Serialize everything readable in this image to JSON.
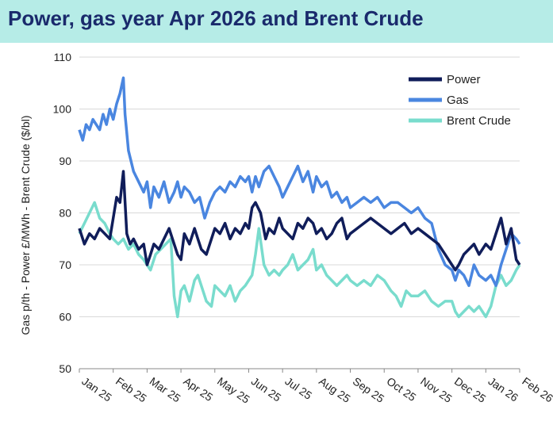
{
  "chart_data": {
    "type": "line",
    "title": "Power, gas year Apr 2026 and Brent Crude",
    "xlabel": "",
    "ylabel": "Gas p/th - Power £/MWh - Brent Crude ($/bl)",
    "ylim": [
      50,
      110
    ],
    "yticks": [
      50,
      60,
      70,
      80,
      90,
      100,
      110
    ],
    "xlim": [
      0,
      13
    ],
    "xtick_labels": [
      "Jan 25",
      "Feb 25",
      "Mar 25",
      "Apr 25",
      "May 25",
      "Jun 25",
      "Jul 25",
      "Aug 25",
      "Sep 25",
      "Oct 25",
      "Nov 25",
      "Dec 25",
      "Jan 26",
      "Feb 26"
    ],
    "grid": true,
    "legend_position": "top-right",
    "series": [
      {
        "name": "Power",
        "color": "#101d5a",
        "x": [
          0,
          0.15,
          0.3,
          0.45,
          0.6,
          0.75,
          0.9,
          1.0,
          1.1,
          1.2,
          1.3,
          1.4,
          1.5,
          1.6,
          1.75,
          1.9,
          2.0,
          2.1,
          2.2,
          2.35,
          2.5,
          2.65,
          2.8,
          2.9,
          3.0,
          3.1,
          3.25,
          3.4,
          3.5,
          3.6,
          3.75,
          3.9,
          4.0,
          4.15,
          4.3,
          4.45,
          4.6,
          4.75,
          4.9,
          5.0,
          5.1,
          5.2,
          5.35,
          5.5,
          5.6,
          5.75,
          5.9,
          6.0,
          6.15,
          6.3,
          6.45,
          6.6,
          6.75,
          6.9,
          7.0,
          7.15,
          7.3,
          7.45,
          7.6,
          7.75,
          7.9,
          8.0,
          8.2,
          8.4,
          8.6,
          8.8,
          9.0,
          9.2,
          9.4,
          9.6,
          9.8,
          10.0,
          10.2,
          10.4,
          10.6,
          10.8,
          11.0,
          11.1,
          11.2,
          11.35,
          11.5,
          11.65,
          11.8,
          12.0,
          12.15,
          12.3,
          12.45,
          12.6,
          12.75,
          12.9,
          13.0
        ],
        "values": [
          77,
          74,
          76,
          75,
          77,
          76,
          75,
          79,
          83,
          82,
          88,
          76,
          74,
          75,
          73,
          74,
          70,
          72,
          74,
          73,
          75,
          77,
          74,
          72,
          71,
          76,
          74,
          77,
          75,
          73,
          72,
          75,
          77,
          76,
          78,
          75,
          77,
          76,
          78,
          77,
          81,
          82,
          80,
          75,
          77,
          76,
          79,
          77,
          76,
          75,
          78,
          77,
          79,
          78,
          76,
          77,
          75,
          76,
          78,
          79,
          75,
          76,
          77,
          78,
          79,
          78,
          77,
          76,
          77,
          78,
          76,
          77,
          76,
          75,
          74,
          72,
          70,
          69,
          70,
          72,
          73,
          74,
          72,
          74,
          73,
          76,
          79,
          74,
          77,
          71,
          70
        ]
      },
      {
        "name": "Gas",
        "color": "#4a86e0",
        "x": [
          0,
          0.1,
          0.2,
          0.3,
          0.4,
          0.5,
          0.6,
          0.7,
          0.8,
          0.9,
          1.0,
          1.1,
          1.2,
          1.3,
          1.35,
          1.45,
          1.6,
          1.75,
          1.9,
          2.0,
          2.1,
          2.2,
          2.35,
          2.5,
          2.65,
          2.8,
          2.9,
          3.0,
          3.1,
          3.25,
          3.4,
          3.55,
          3.7,
          3.85,
          4.0,
          4.15,
          4.3,
          4.45,
          4.6,
          4.75,
          4.9,
          5.0,
          5.1,
          5.2,
          5.3,
          5.45,
          5.6,
          5.75,
          5.9,
          6.0,
          6.15,
          6.3,
          6.45,
          6.6,
          6.75,
          6.9,
          7.0,
          7.15,
          7.3,
          7.45,
          7.6,
          7.75,
          7.9,
          8.0,
          8.2,
          8.4,
          8.6,
          8.8,
          9.0,
          9.2,
          9.4,
          9.6,
          9.8,
          10.0,
          10.2,
          10.4,
          10.6,
          10.8,
          11.0,
          11.1,
          11.2,
          11.35,
          11.5,
          11.65,
          11.8,
          12.0,
          12.15,
          12.3,
          12.45,
          12.6,
          12.75,
          12.9,
          13.0
        ],
        "values": [
          96,
          94,
          97,
          96,
          98,
          97,
          96,
          99,
          97,
          100,
          98,
          101,
          103,
          106,
          99,
          92,
          88,
          86,
          84,
          86,
          81,
          85,
          83,
          86,
          82,
          84,
          86,
          83,
          85,
          84,
          82,
          83,
          79,
          82,
          84,
          85,
          84,
          86,
          85,
          87,
          86,
          87,
          84,
          87,
          85,
          88,
          89,
          87,
          85,
          83,
          85,
          87,
          89,
          86,
          88,
          84,
          87,
          85,
          86,
          83,
          84,
          82,
          83,
          81,
          82,
          83,
          82,
          83,
          81,
          82,
          82,
          81,
          80,
          81,
          79,
          78,
          73,
          70,
          69,
          67,
          69,
          68,
          66,
          70,
          68,
          67,
          68,
          66,
          70,
          73,
          76,
          75,
          74
        ]
      },
      {
        "name": "Brent Crude",
        "color": "#79dccd",
        "x": [
          0,
          0.15,
          0.3,
          0.45,
          0.6,
          0.75,
          0.9,
          1.0,
          1.15,
          1.3,
          1.45,
          1.6,
          1.75,
          1.9,
          2.0,
          2.1,
          2.25,
          2.4,
          2.55,
          2.7,
          2.8,
          2.9,
          3.0,
          3.1,
          3.25,
          3.4,
          3.5,
          3.6,
          3.75,
          3.9,
          4.0,
          4.15,
          4.3,
          4.45,
          4.6,
          4.75,
          4.9,
          5.0,
          5.1,
          5.2,
          5.3,
          5.45,
          5.6,
          5.75,
          5.9,
          6.0,
          6.15,
          6.3,
          6.45,
          6.6,
          6.75,
          6.9,
          7.0,
          7.15,
          7.3,
          7.45,
          7.6,
          7.75,
          7.9,
          8.0,
          8.2,
          8.4,
          8.6,
          8.8,
          9.0,
          9.1,
          9.2,
          9.35,
          9.5,
          9.65,
          9.8,
          10.0,
          10.2,
          10.4,
          10.6,
          10.8,
          11.0,
          11.1,
          11.2,
          11.35,
          11.5,
          11.65,
          11.8,
          12.0,
          12.15,
          12.3,
          12.45,
          12.6,
          12.75,
          12.9,
          13.0
        ],
        "values": [
          76,
          78,
          80,
          82,
          79,
          78,
          76,
          75,
          74,
          75,
          73,
          74,
          72,
          71,
          70,
          69,
          72,
          73,
          74,
          75,
          64,
          60,
          65,
          66,
          63,
          67,
          68,
          66,
          63,
          62,
          66,
          65,
          64,
          66,
          63,
          65,
          66,
          67,
          68,
          72,
          77,
          70,
          68,
          69,
          68,
          69,
          70,
          72,
          69,
          70,
          71,
          73,
          69,
          70,
          68,
          67,
          66,
          67,
          68,
          67,
          66,
          67,
          66,
          68,
          67,
          66,
          65,
          64,
          62,
          65,
          64,
          64,
          65,
          63,
          62,
          63,
          63,
          61,
          60,
          61,
          62,
          61,
          62,
          60,
          62,
          66,
          68,
          66,
          67,
          69,
          70
        ]
      }
    ]
  }
}
